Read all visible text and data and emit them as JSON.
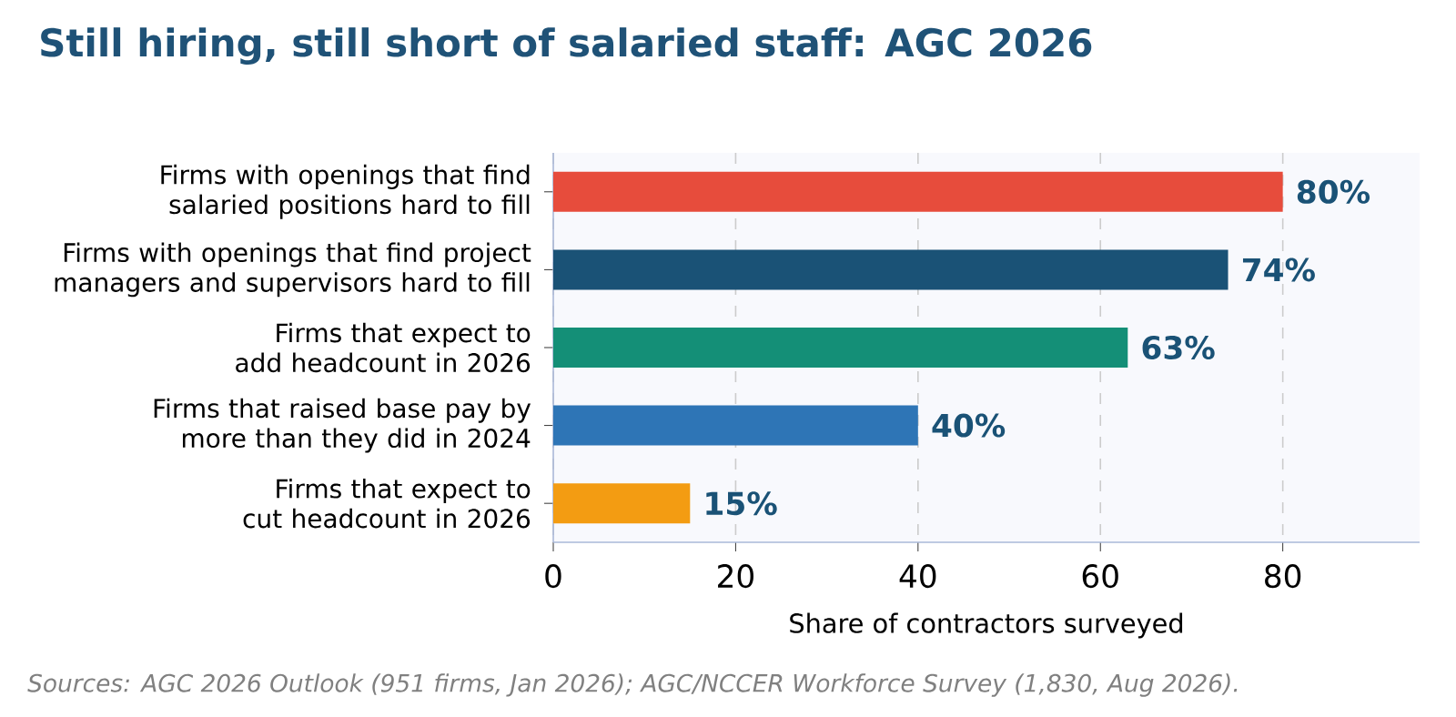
{
  "chart_data": {
    "type": "bar",
    "orientation": "horizontal",
    "title": "Still hiring, still short of salaried staff: AGC 2026",
    "categories": [
      "Firms with openings that find salaried positions hard to fill",
      "Firms with openings that find project managers and supervisors hard to fill",
      "Firms that expect to add headcount in 2026",
      "Firms that raised base pay by more than they did in 2024",
      "Firms that expect to cut headcount in 2026"
    ],
    "values": [
      80,
      74,
      63,
      40,
      15
    ],
    "colors": [
      "#e74c3c",
      "#1a5276",
      "#148f77",
      "#2e75b6",
      "#f39c12"
    ],
    "value_labels": [
      "80%",
      "74%",
      "63%",
      "40%",
      "15%"
    ],
    "xlabel": "Share of contractors surveyed",
    "xlim": [
      0,
      95
    ],
    "xticks": [
      0,
      20,
      40,
      60,
      80
    ],
    "grid": "x",
    "annotations": [
      "Sources: AGC 2026 Outlook (951 firms, Jan 2026); AGC/NCCER Workforce Survey (1,830, Aug 2026)."
    ]
  }
}
